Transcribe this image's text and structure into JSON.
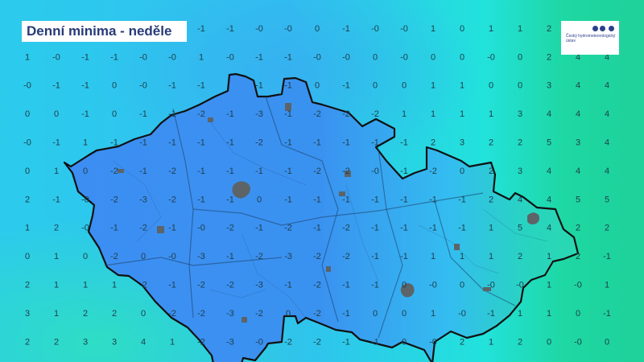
{
  "title": "Denní minima - neděle",
  "logo": {
    "text": "Český hydrometeorologický ústav"
  },
  "colors": {
    "cold": "#3a8af0",
    "mild": "#2fd3ee",
    "warm": "#1fd49a",
    "border": "#111111",
    "city": "#5c6468"
  },
  "icons": {
    "city_marker": "gray-city-blob"
  },
  "grid_values": [
    [
      "",
      "",
      "",
      "",
      "",
      "",
      "-1",
      "-1",
      "-0",
      "-0",
      "0",
      "-1",
      "-0",
      "-0",
      "1",
      "0",
      "1",
      "1",
      "2",
      "",
      ""
    ],
    [
      "1",
      "-0",
      "-1",
      "-1",
      "-0",
      "-0",
      "1",
      "-0",
      "-1",
      "-1",
      "-0",
      "-0",
      "0",
      "-0",
      "0",
      "0",
      "-0",
      "0",
      "2",
      "4",
      "4"
    ],
    [
      "-0",
      "-1",
      "-1",
      "0",
      "-0",
      "-1",
      "-1",
      "",
      "-1",
      "-1",
      "0",
      "-1",
      "0",
      "0",
      "1",
      "1",
      "0",
      "0",
      "3",
      "4",
      "4"
    ],
    [
      "0",
      "0",
      "-1",
      "0",
      "-1",
      "-1",
      "-2",
      "-1",
      "-3",
      "-1",
      "-2",
      "-2",
      "-2",
      "1",
      "1",
      "1",
      "1",
      "3",
      "4",
      "4",
      "4"
    ],
    [
      "-0",
      "-1",
      "1",
      "-1",
      "-1",
      "-1",
      "-1",
      "-1",
      "-2",
      "-1",
      "-1",
      "-1",
      "-1",
      "-1",
      "2",
      "3",
      "2",
      "2",
      "5",
      "3",
      "4"
    ],
    [
      "0",
      "1",
      "0",
      "-2",
      "-1",
      "-2",
      "-1",
      "-1",
      "-1",
      "-1",
      "-2",
      "-2",
      "-0",
      "-1",
      "-2",
      "0",
      "2",
      "3",
      "4",
      "4",
      "4"
    ],
    [
      "2",
      "-1",
      "-0",
      "-2",
      "-3",
      "-2",
      "-1",
      "-1",
      "0",
      "-1",
      "-1",
      "-1",
      "-1",
      "-1",
      "-1",
      "-1",
      "2",
      "4",
      "4",
      "5",
      "5"
    ],
    [
      "1",
      "2",
      "-0",
      "-1",
      "-2",
      "-1",
      "-0",
      "-2",
      "-1",
      "-2",
      "-1",
      "-2",
      "-1",
      "-1",
      "-1",
      "-1",
      "1",
      "5",
      "4",
      "2",
      "2"
    ],
    [
      "0",
      "1",
      "0",
      "-2",
      "0",
      "-0",
      "-3",
      "-1",
      "-2",
      "-3",
      "-2",
      "-2",
      "-1",
      "-1",
      "1",
      "1",
      "1",
      "2",
      "1",
      "2",
      "-1"
    ],
    [
      "2",
      "1",
      "1",
      "1",
      "-2",
      "-1",
      "-2",
      "-2",
      "-3",
      "-1",
      "-2",
      "-1",
      "-1",
      "0",
      "-0",
      "0",
      "-0",
      "-0",
      "1",
      "-0",
      "1"
    ],
    [
      "3",
      "1",
      "2",
      "2",
      "0",
      "-2",
      "-2",
      "-3",
      "-2",
      "0",
      "-2",
      "-1",
      "0",
      "0",
      "1",
      "-0",
      "-1",
      "1",
      "1",
      "0",
      "-1"
    ],
    [
      "2",
      "2",
      "3",
      "3",
      "4",
      "1",
      "-2",
      "-3",
      "-0",
      "-2",
      "-2",
      "-1",
      "-1",
      "0",
      "-0",
      "2",
      "1",
      "2",
      "0",
      "-0",
      "0"
    ]
  ]
}
